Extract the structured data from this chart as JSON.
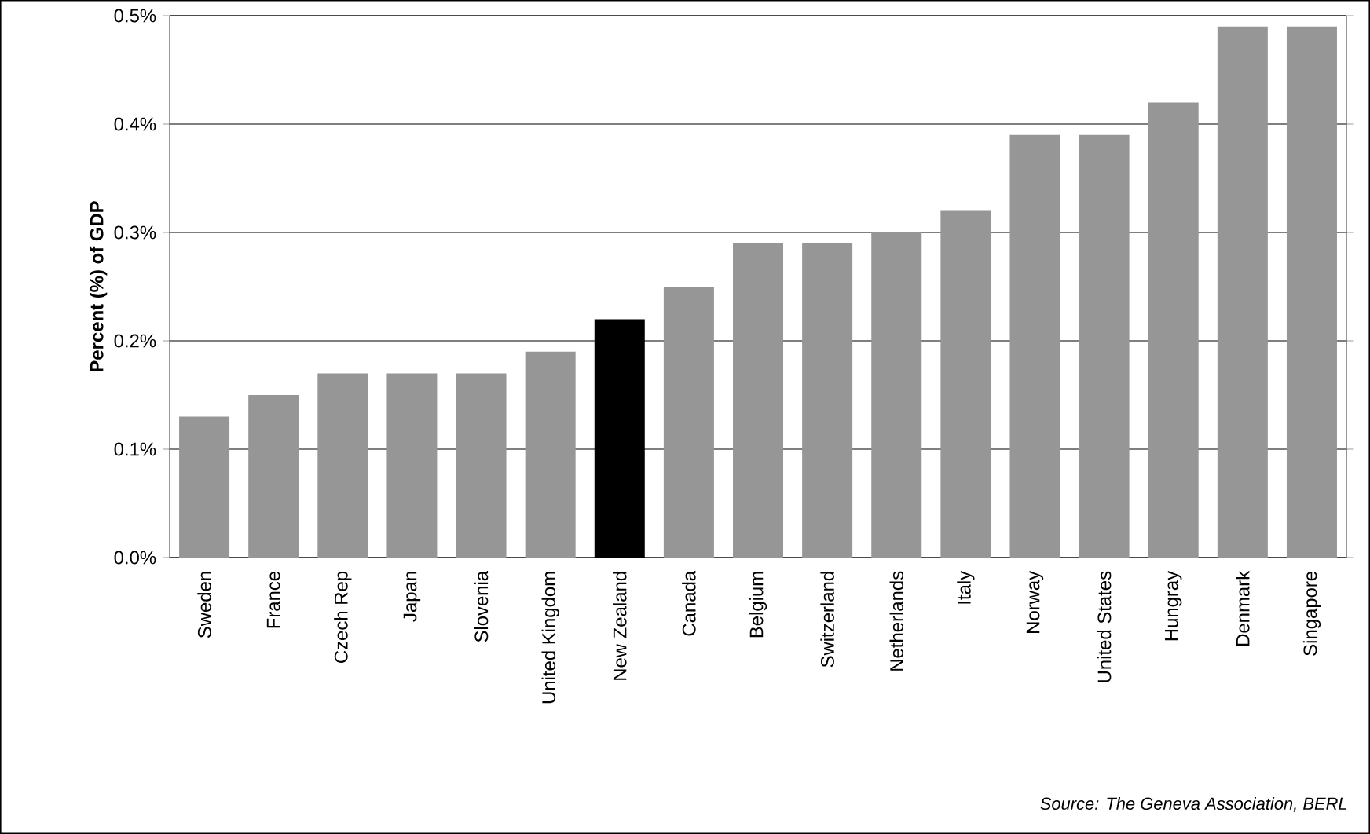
{
  "chart_data": {
    "type": "bar",
    "ylabel": "Percent (%) of GDP",
    "categories": [
      "Sweden",
      "France",
      "Czech Rep",
      "Japan",
      "Slovenia",
      "United Kingdom",
      "New Zealand",
      "Canada",
      "Belgium",
      "Switzerland",
      "Netherlands",
      "Italy",
      "Norway",
      "United States",
      "Hungray",
      "Denmark",
      "Singapore"
    ],
    "values": [
      0.13,
      0.15,
      0.17,
      0.17,
      0.17,
      0.19,
      0.22,
      0.25,
      0.29,
      0.29,
      0.3,
      0.32,
      0.39,
      0.39,
      0.42,
      0.49,
      0.49
    ],
    "colors": [
      "#969696",
      "#969696",
      "#969696",
      "#969696",
      "#969696",
      "#969696",
      "#000000",
      "#969696",
      "#969696",
      "#969696",
      "#969696",
      "#969696",
      "#969696",
      "#969696",
      "#969696",
      "#969696",
      "#969696"
    ],
    "ylim": [
      0,
      0.5
    ],
    "yticks": [
      {
        "value": 0,
        "label": "0.0%"
      },
      {
        "value": 0.1,
        "label": "0.1%"
      },
      {
        "value": 0.2,
        "label": "0.2%"
      },
      {
        "value": 0.3,
        "label": "0.3%"
      },
      {
        "value": 0.4,
        "label": "0.4%"
      },
      {
        "value": 0.5,
        "label": "0.5%"
      }
    ],
    "grid": "y",
    "annotations": [
      "Source: The Geneva Association, BERL"
    ]
  }
}
